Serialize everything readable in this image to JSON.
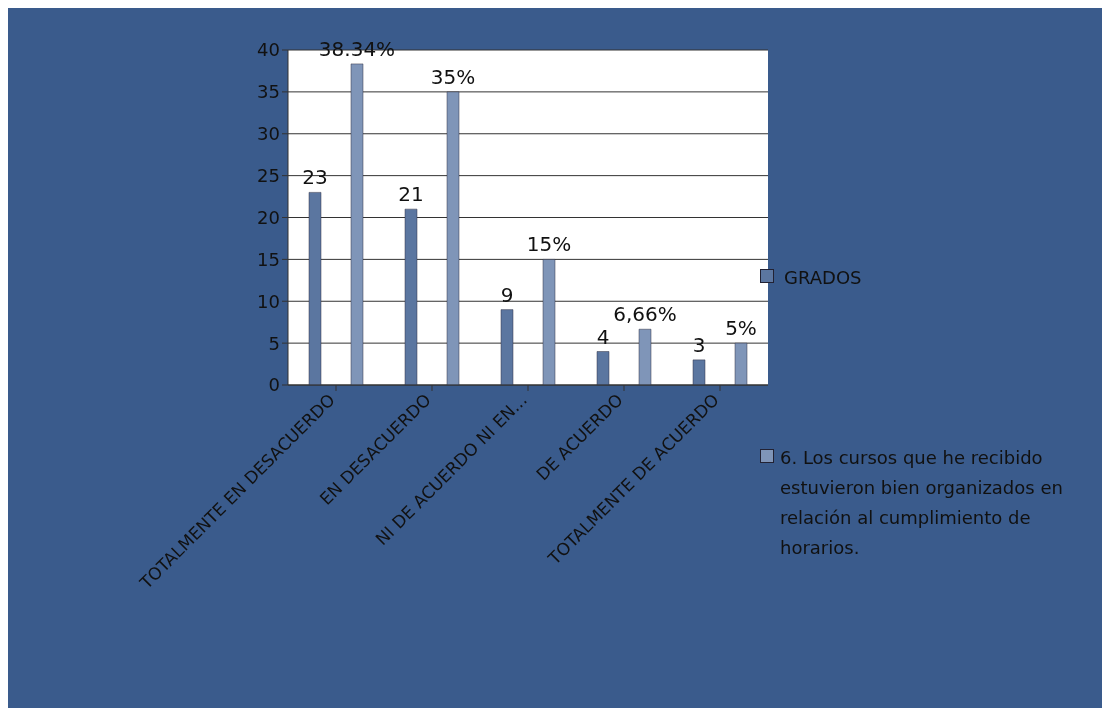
{
  "chart_data": {
    "type": "bar",
    "categories": [
      "TOTALMENTE EN DESACUERDO",
      "EN DESACUERDO",
      "NI DE ACUERDO NI EN...",
      "DE ACUERDO",
      "TOTALMENTE DE ACUERDO"
    ],
    "series": [
      {
        "name": "GRADOS",
        "color": "#5b76a0",
        "values": [
          23,
          21,
          9,
          4,
          3
        ],
        "value_labels": [
          "23",
          "21",
          "9",
          "4",
          "3"
        ]
      },
      {
        "name": "6. Los cursos que he recibido estuvieron bien organizados en relación al cumplimiento de horarios.",
        "color": "#7f95b8",
        "values": [
          38.34,
          35,
          15,
          6.66,
          5
        ],
        "value_labels": [
          "38.34%",
          "35%",
          "15%",
          "6,66%",
          "5%"
        ]
      }
    ],
    "ylim": [
      0,
      40
    ],
    "yticks": [
      0,
      5,
      10,
      15,
      20,
      25,
      30,
      35,
      40
    ],
    "grid": "y",
    "legend": "right"
  }
}
